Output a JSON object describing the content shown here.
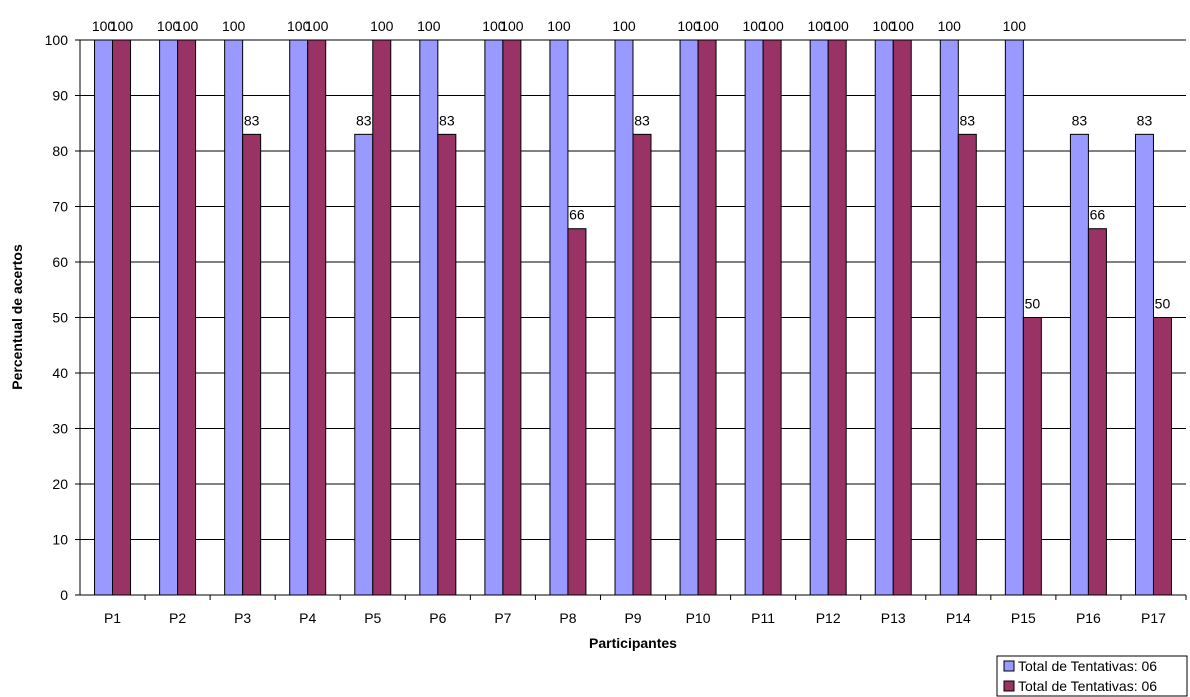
{
  "chart_data": {
    "type": "bar",
    "title": "",
    "xlabel": "Participantes",
    "ylabel": "Percentual de acertos",
    "ylim": [
      0,
      100
    ],
    "yticks": [
      0,
      10,
      20,
      30,
      40,
      50,
      60,
      70,
      80,
      90,
      100
    ],
    "grid": true,
    "legend_position": "bottom-right",
    "categories": [
      "P1",
      "P2",
      "P3",
      "P4",
      "P5",
      "P6",
      "P7",
      "P8",
      "P9",
      "P10",
      "P11",
      "P12",
      "P13",
      "P14",
      "P15",
      "P16",
      "P17"
    ],
    "series": [
      {
        "name": "Total de Tentativas: 06",
        "color": "#9999ff",
        "values": [
          100,
          100,
          100,
          100,
          83,
          100,
          100,
          100,
          100,
          100,
          100,
          100,
          100,
          100,
          100,
          83,
          83
        ]
      },
      {
        "name": "Total de Tentativas: 06",
        "color": "#993366",
        "values": [
          100,
          100,
          83,
          100,
          100,
          83,
          100,
          66,
          83,
          100,
          100,
          100,
          100,
          83,
          50,
          66,
          50
        ]
      }
    ]
  }
}
